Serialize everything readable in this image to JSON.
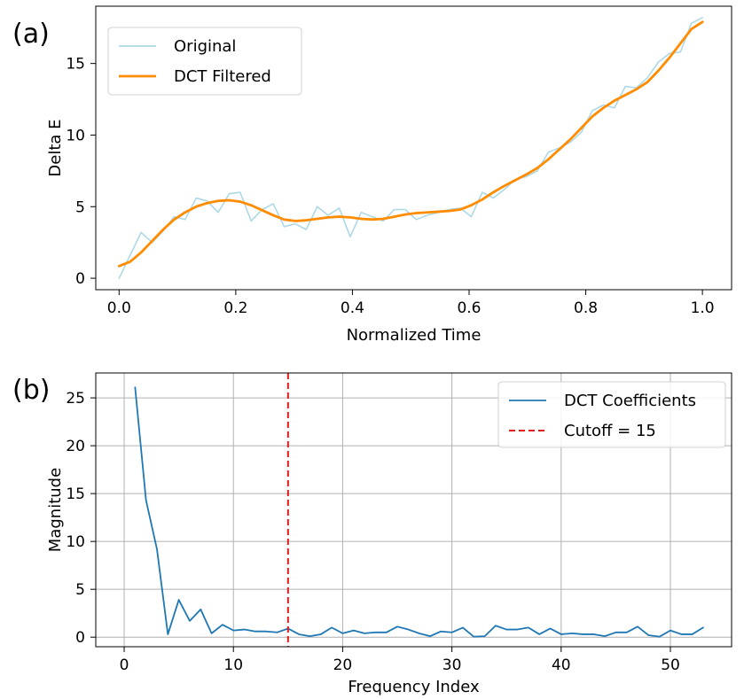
{
  "chart_data": [
    {
      "panel_label": "(a)",
      "type": "line",
      "xlabel": "Normalized Time",
      "ylabel": "Delta E",
      "xlim": [
        -0.04,
        1.05
      ],
      "ylim": [
        -0.8,
        19.0
      ],
      "xticks": [
        0.0,
        0.2,
        0.4,
        0.6,
        0.8,
        1.0
      ],
      "xtick_labels": [
        "0.0",
        "0.2",
        "0.4",
        "0.6",
        "0.8",
        "1.0"
      ],
      "yticks": [
        0,
        5,
        10,
        15
      ],
      "ytick_labels": [
        "0",
        "5",
        "10",
        "15"
      ],
      "grid": false,
      "legend_position": "upper-left",
      "series": [
        {
          "name": "Original",
          "color": "#add8e6",
          "x": [
            0.0,
            0.0189,
            0.0377,
            0.0566,
            0.0755,
            0.0943,
            0.1132,
            0.1321,
            0.1509,
            0.1698,
            0.1887,
            0.2075,
            0.2264,
            0.2453,
            0.2642,
            0.283,
            0.3019,
            0.3208,
            0.3396,
            0.3585,
            0.3774,
            0.3962,
            0.4151,
            0.434,
            0.4528,
            0.4717,
            0.4906,
            0.5094,
            0.5283,
            0.5472,
            0.566,
            0.5849,
            0.6038,
            0.6226,
            0.6415,
            0.6604,
            0.6792,
            0.6981,
            0.717,
            0.7358,
            0.7547,
            0.7736,
            0.7925,
            0.8113,
            0.8302,
            0.8491,
            0.8679,
            0.8868,
            0.9057,
            0.9245,
            0.9434,
            0.9623,
            0.9811,
            1.0
          ],
          "values": [
            0.0,
            1.6,
            3.2,
            2.5,
            3.3,
            4.3,
            4.1,
            5.6,
            5.4,
            4.6,
            5.9,
            6.0,
            4.0,
            4.8,
            5.2,
            3.6,
            3.8,
            3.4,
            5.0,
            4.4,
            4.9,
            2.9,
            4.6,
            4.3,
            4.0,
            4.8,
            4.8,
            4.1,
            4.4,
            4.6,
            4.8,
            4.9,
            4.3,
            6.0,
            5.6,
            6.2,
            6.9,
            7.1,
            7.5,
            8.8,
            9.1,
            9.5,
            10.2,
            11.7,
            12.1,
            11.9,
            13.4,
            13.3,
            14.0,
            15.1,
            15.7,
            15.8,
            17.8,
            18.2
          ]
        },
        {
          "name": "DCT Filtered",
          "color": "#ff8c00",
          "x": [
            0.0,
            0.0189,
            0.0377,
            0.0566,
            0.0755,
            0.0943,
            0.1132,
            0.1321,
            0.1509,
            0.1698,
            0.1887,
            0.2075,
            0.2264,
            0.2453,
            0.2642,
            0.283,
            0.3019,
            0.3208,
            0.3396,
            0.3585,
            0.3774,
            0.3962,
            0.4151,
            0.434,
            0.4528,
            0.4717,
            0.4906,
            0.5094,
            0.5283,
            0.5472,
            0.566,
            0.5849,
            0.6038,
            0.6226,
            0.6415,
            0.6604,
            0.6792,
            0.6981,
            0.717,
            0.7358,
            0.7547,
            0.7736,
            0.7925,
            0.8113,
            0.8302,
            0.8491,
            0.8679,
            0.8868,
            0.9057,
            0.9245,
            0.9434,
            0.9623,
            0.9811,
            1.0
          ],
          "values": [
            0.85,
            1.15,
            1.8,
            2.6,
            3.4,
            4.1,
            4.6,
            5.0,
            5.25,
            5.4,
            5.45,
            5.35,
            5.1,
            4.75,
            4.4,
            4.1,
            4.0,
            4.05,
            4.15,
            4.25,
            4.3,
            4.25,
            4.15,
            4.1,
            4.15,
            4.3,
            4.45,
            4.55,
            4.6,
            4.65,
            4.7,
            4.8,
            5.1,
            5.5,
            6.0,
            6.45,
            6.85,
            7.25,
            7.7,
            8.3,
            9.0,
            9.7,
            10.5,
            11.3,
            11.9,
            12.4,
            12.8,
            13.2,
            13.7,
            14.5,
            15.4,
            16.4,
            17.4,
            17.9
          ]
        }
      ]
    },
    {
      "panel_label": "(b)",
      "type": "line",
      "xlabel": "Frequency Index",
      "ylabel": "Magnitude",
      "xlim": [
        -2.6,
        55.6
      ],
      "ylim": [
        -1.0,
        27.6
      ],
      "xticks": [
        0,
        10,
        20,
        30,
        40,
        50
      ],
      "xtick_labels": [
        "0",
        "10",
        "20",
        "30",
        "40",
        "50"
      ],
      "yticks": [
        0,
        5,
        10,
        15,
        20,
        25
      ],
      "ytick_labels": [
        "0",
        "5",
        "10",
        "15",
        "20",
        "25"
      ],
      "grid": true,
      "legend_position": "upper-right",
      "series": [
        {
          "name": "DCT Coefficients",
          "color": "#1f77b4",
          "x": [
            1,
            2,
            3,
            4,
            5,
            6,
            7,
            8,
            9,
            10,
            11,
            12,
            13,
            14,
            15,
            16,
            17,
            18,
            19,
            20,
            21,
            22,
            23,
            24,
            25,
            26,
            27,
            28,
            29,
            30,
            31,
            32,
            33,
            34,
            35,
            36,
            37,
            38,
            39,
            40,
            41,
            42,
            43,
            44,
            45,
            46,
            47,
            48,
            49,
            50,
            51,
            52,
            53
          ],
          "values": [
            26.1,
            14.3,
            9.2,
            0.3,
            3.9,
            1.7,
            2.9,
            0.4,
            1.3,
            0.7,
            0.8,
            0.6,
            0.6,
            0.5,
            0.9,
            0.3,
            0.1,
            0.3,
            1.0,
            0.4,
            0.7,
            0.4,
            0.5,
            0.5,
            1.1,
            0.8,
            0.4,
            0.1,
            0.6,
            0.5,
            1.0,
            0.05,
            0.1,
            1.2,
            0.8,
            0.8,
            1.0,
            0.3,
            0.9,
            0.3,
            0.4,
            0.3,
            0.3,
            0.1,
            0.5,
            0.5,
            1.1,
            0.2,
            0.05,
            0.7,
            0.3,
            0.3,
            1.0
          ]
        }
      ],
      "reference_lines": [
        {
          "name": "Cutoff = 15",
          "x": 15,
          "color": "#e31a1c",
          "style": "dashed"
        }
      ]
    }
  ]
}
